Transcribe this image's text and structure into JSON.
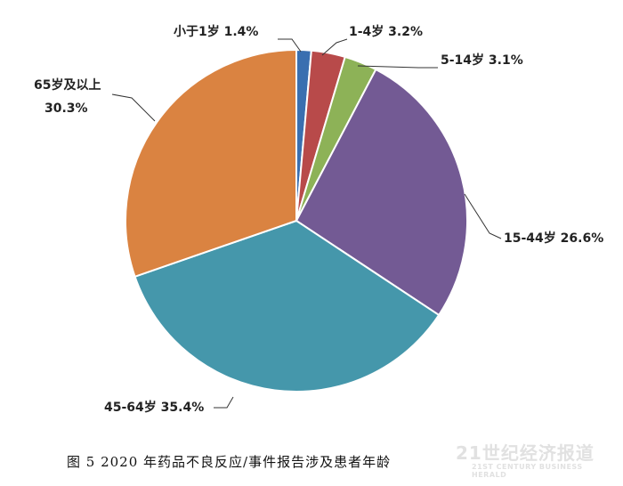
{
  "chart_data": {
    "type": "pie",
    "title": "",
    "slices": [
      {
        "label": "小于1岁",
        "value": 1.4,
        "text": "小于1岁 1.4%",
        "color": "#3a6fb0"
      },
      {
        "label": "1-4岁",
        "value": 3.2,
        "text": "1-4岁 3.2%",
        "color": "#b84a4a"
      },
      {
        "label": "5-14岁",
        "value": 3.1,
        "text": "5-14岁 3.1%",
        "color": "#8db257"
      },
      {
        "label": "15-44岁",
        "value": 26.6,
        "text": "15-44岁 26.6%",
        "color": "#735a94"
      },
      {
        "label": "45-64岁",
        "value": 35.4,
        "text": "45-64岁 35.4%",
        "color": "#4597ab"
      },
      {
        "label": "65岁及以上",
        "value": 30.3,
        "text_lines": [
          "65岁及以上",
          "30.3%"
        ],
        "color": "#da8341"
      }
    ],
    "start": "12 o'clock",
    "direction": "clockwise"
  },
  "caption": "图 5   2020 年药品不良反应/事件报告涉及患者年龄",
  "watermark": {
    "main": "21世纪经济报道",
    "sub": "21ST CENTURY BUSINESS HERALD"
  }
}
